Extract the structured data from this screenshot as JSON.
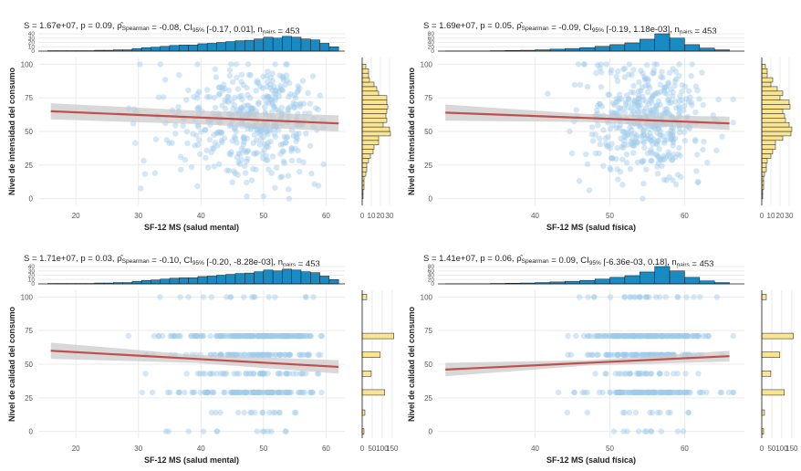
{
  "style": {
    "point_color": "#9ec9ea",
    "fit_line_color": "#c0504d",
    "ci_band_color": "#c8c8c8",
    "top_hist_fill": "#1a8ac2",
    "right_hist_fill": "#f8e491",
    "grid_color": "#ebebeb"
  },
  "chart_data": [
    {
      "type": "scatter",
      "title_main": "S = 1.67e+07, p = 0.09, ρ̂",
      "title_sub1": "Spearman",
      "title_mid": " = -0.08, CI",
      "title_sub2": "95%",
      "title_end": " [-0.17, 0.01], n",
      "title_sub3": "pairs",
      "title_tail": " = 453",
      "xlabel": "SF-12 MS (salud mental)",
      "ylabel": "Nivel de intensidad del consumo",
      "xlim": [
        14,
        63
      ],
      "ylim": [
        -5,
        105
      ],
      "x_ticks": [
        20,
        30,
        40,
        50,
        60
      ],
      "y_ticks": [
        0,
        25,
        50,
        75,
        100
      ],
      "y_discrete": false,
      "fit": {
        "x": [
          16,
          62
        ],
        "y": [
          65,
          56
        ],
        "ci_half_width": [
          6,
          5,
          6
        ]
      },
      "n_points": 453,
      "x_center": 52,
      "x_spread": 10,
      "top_hist": {
        "bins": [
          15.5,
          17,
          18.5,
          20,
          21.5,
          23,
          24.5,
          26,
          27.5,
          29,
          30.5,
          32,
          33.5,
          35,
          36.5,
          38,
          39.5,
          41,
          42.5,
          44,
          45.5,
          47,
          48.5,
          50,
          51.5,
          53,
          54.5,
          56,
          57.5,
          59,
          60.5,
          62
        ],
        "counts": [
          1,
          1,
          1,
          1,
          1,
          2,
          2,
          3,
          3,
          6,
          8,
          9,
          11,
          13,
          14,
          14,
          17,
          18,
          20,
          22,
          24,
          25,
          28,
          32,
          30,
          34,
          32,
          28,
          26,
          18,
          10
        ],
        "ticks": [
          0,
          10,
          20,
          30,
          40
        ],
        "max": 40
      },
      "right_hist": {
        "ticks": [
          0,
          10,
          20,
          30
        ],
        "max": 35,
        "axis_labels": [
          "0",
          "10",
          "20",
          "30"
        ]
      }
    },
    {
      "type": "scatter",
      "title_main": "S = 1.69e+07, p = 0.05, ρ̂",
      "title_sub1": "Spearman",
      "title_mid": " = -0.09, CI",
      "title_sub2": "95%",
      "title_end": " [-0.19, 1.18e-03], n",
      "title_sub3": "pairs",
      "title_tail": " = 453",
      "xlabel": "SF-12 MS (salud física)",
      "ylabel": "Nivel de intensidad del consumo",
      "xlim": [
        27,
        68
      ],
      "ylim": [
        -5,
        105
      ],
      "x_ticks": [
        40,
        50,
        60
      ],
      "y_ticks": [
        0,
        25,
        50,
        75,
        100
      ],
      "y_discrete": false,
      "fit": {
        "x": [
          28,
          66
        ],
        "y": [
          64,
          56
        ],
        "ci_half_width": [
          6,
          3,
          5
        ]
      },
      "n_points": 453,
      "x_center": 55,
      "x_spread": 4,
      "top_hist": {
        "bins": [
          28,
          30,
          32,
          34,
          36,
          38,
          40,
          42,
          44,
          46,
          48,
          50,
          52,
          54,
          56,
          58,
          60,
          62,
          64,
          66
        ],
        "counts": [
          1,
          1,
          1,
          2,
          3,
          4,
          6,
          9,
          12,
          16,
          22,
          30,
          38,
          55,
          80,
          60,
          30,
          14,
          6
        ],
        "ticks": [
          0,
          20,
          40,
          60,
          80
        ],
        "max": 80
      },
      "right_hist": {
        "ticks": [
          0,
          10,
          20,
          30
        ],
        "max": 35,
        "axis_labels": [
          "0",
          "10",
          "20",
          "30"
        ]
      }
    },
    {
      "type": "scatter",
      "title_main": "S = 1.71e+07, p = 0.03, ρ̂",
      "title_sub1": "Spearman",
      "title_mid": " = -0.10, CI",
      "title_sub2": "95%",
      "title_end": " [-0.20, -8.28e-03], n",
      "title_sub3": "pairs",
      "title_tail": " = 453",
      "xlabel": "SF-12 MS (salud mental)",
      "ylabel": "Nivel de calidad del consumo",
      "xlim": [
        14,
        63
      ],
      "ylim": [
        -5,
        105
      ],
      "x_ticks": [
        20,
        30,
        40,
        50,
        60
      ],
      "y_ticks": [
        0,
        25,
        50,
        75,
        100
      ],
      "y_discrete": true,
      "y_levels": [
        0,
        14,
        29,
        43,
        57,
        71,
        100
      ],
      "y_weights": [
        0.02,
        0.03,
        0.25,
        0.1,
        0.2,
        0.35,
        0.05
      ],
      "fit": {
        "x": [
          16,
          62
        ],
        "y": [
          60,
          48
        ],
        "ci_half_width": [
          6,
          3,
          5
        ]
      },
      "n_points": 453,
      "x_center": 52,
      "x_spread": 10,
      "top_hist": {
        "bins": [
          15.5,
          17,
          18.5,
          20,
          21.5,
          23,
          24.5,
          26,
          27.5,
          29,
          30.5,
          32,
          33.5,
          35,
          36.5,
          38,
          39.5,
          41,
          42.5,
          44,
          45.5,
          47,
          48.5,
          50,
          51.5,
          53,
          54.5,
          56,
          57.5,
          59,
          60.5,
          62
        ],
        "counts": [
          1,
          1,
          1,
          1,
          1,
          2,
          2,
          3,
          3,
          6,
          8,
          9,
          11,
          13,
          14,
          14,
          17,
          18,
          20,
          22,
          24,
          25,
          28,
          32,
          30,
          34,
          32,
          28,
          26,
          18,
          10
        ],
        "ticks": [
          0,
          10,
          20,
          30,
          40
        ],
        "max": 40
      },
      "right_hist": {
        "ticks": [
          0,
          50,
          100,
          150
        ],
        "max": 160,
        "axis_labels": [
          "0",
          "50",
          "100",
          "150"
        ]
      }
    },
    {
      "type": "scatter",
      "title_main": "S = 1.41e+07, p = 0.06, ρ̂",
      "title_sub1": "Spearman",
      "title_mid": " = 0.09, CI",
      "title_sub2": "95%",
      "title_end": " [-6.36e-03, 0.18], n",
      "title_sub3": "pairs",
      "title_tail": " = 453",
      "xlabel": "SF-12 MS (salud física)",
      "ylabel": "Nivel de calidad del consumo",
      "xlim": [
        27,
        68
      ],
      "ylim": [
        -5,
        105
      ],
      "x_ticks": [
        40,
        50,
        60
      ],
      "y_ticks": [
        0,
        25,
        50,
        75,
        100
      ],
      "y_discrete": true,
      "y_levels": [
        0,
        14,
        29,
        43,
        57,
        71,
        100
      ],
      "y_weights": [
        0.02,
        0.03,
        0.25,
        0.1,
        0.2,
        0.35,
        0.05
      ],
      "fit": {
        "x": [
          28,
          66
        ],
        "y": [
          46,
          56
        ],
        "ci_half_width": [
          5,
          2,
          4
        ]
      },
      "n_points": 453,
      "x_center": 55,
      "x_spread": 4,
      "top_hist": {
        "bins": [
          28,
          30,
          32,
          34,
          36,
          38,
          40,
          42,
          44,
          46,
          48,
          50,
          52,
          54,
          56,
          58,
          60,
          62,
          64,
          66
        ],
        "counts": [
          1,
          1,
          1,
          2,
          3,
          4,
          6,
          9,
          12,
          16,
          22,
          30,
          38,
          55,
          80,
          60,
          30,
          14,
          6
        ],
        "ticks": [
          0,
          20,
          40,
          60,
          80
        ],
        "max": 80
      },
      "right_hist": {
        "ticks": [
          0,
          50,
          100,
          150
        ],
        "max": 160,
        "axis_labels": [
          "0",
          "50",
          "100",
          "150"
        ]
      }
    }
  ]
}
